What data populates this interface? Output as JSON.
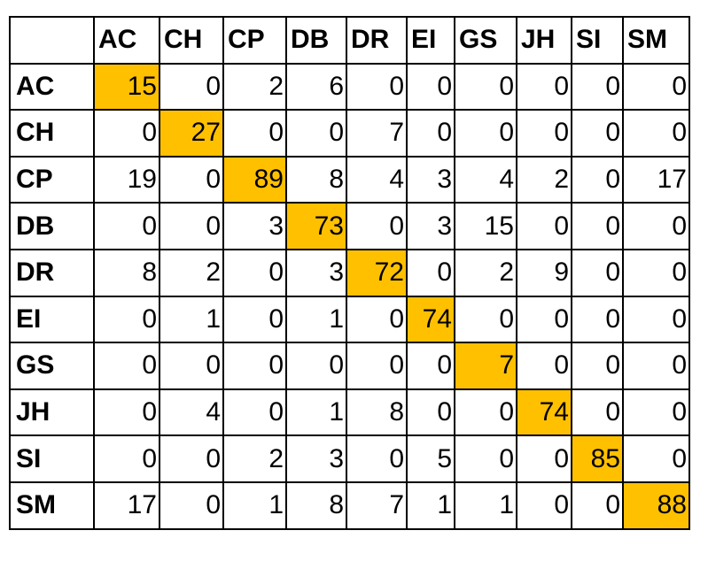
{
  "chart_data": {
    "type": "heatmap",
    "row_labels": [
      "AC",
      "CH",
      "CP",
      "DB",
      "DR",
      "EI",
      "GS",
      "JH",
      "SI",
      "SM"
    ],
    "col_labels": [
      "AC",
      "CH",
      "CP",
      "DB",
      "DR",
      "EI",
      "GS",
      "JH",
      "SI",
      "SM"
    ],
    "values": [
      [
        15,
        0,
        2,
        6,
        0,
        0,
        0,
        0,
        0,
        0
      ],
      [
        0,
        27,
        0,
        0,
        7,
        0,
        0,
        0,
        0,
        0
      ],
      [
        19,
        0,
        89,
        8,
        4,
        3,
        4,
        2,
        0,
        17
      ],
      [
        0,
        0,
        3,
        73,
        0,
        3,
        15,
        0,
        0,
        0
      ],
      [
        8,
        2,
        0,
        3,
        72,
        0,
        2,
        9,
        0,
        0
      ],
      [
        0,
        1,
        0,
        1,
        0,
        74,
        0,
        0,
        0,
        0
      ],
      [
        0,
        0,
        0,
        0,
        0,
        0,
        7,
        0,
        0,
        0
      ],
      [
        0,
        4,
        0,
        1,
        8,
        0,
        0,
        74,
        0,
        0
      ],
      [
        0,
        0,
        2,
        3,
        0,
        5,
        0,
        0,
        85,
        0
      ],
      [
        17,
        0,
        1,
        8,
        7,
        1,
        1,
        0,
        0,
        88
      ]
    ],
    "highlight": "diagonal",
    "highlight_color": "#FFC000"
  }
}
